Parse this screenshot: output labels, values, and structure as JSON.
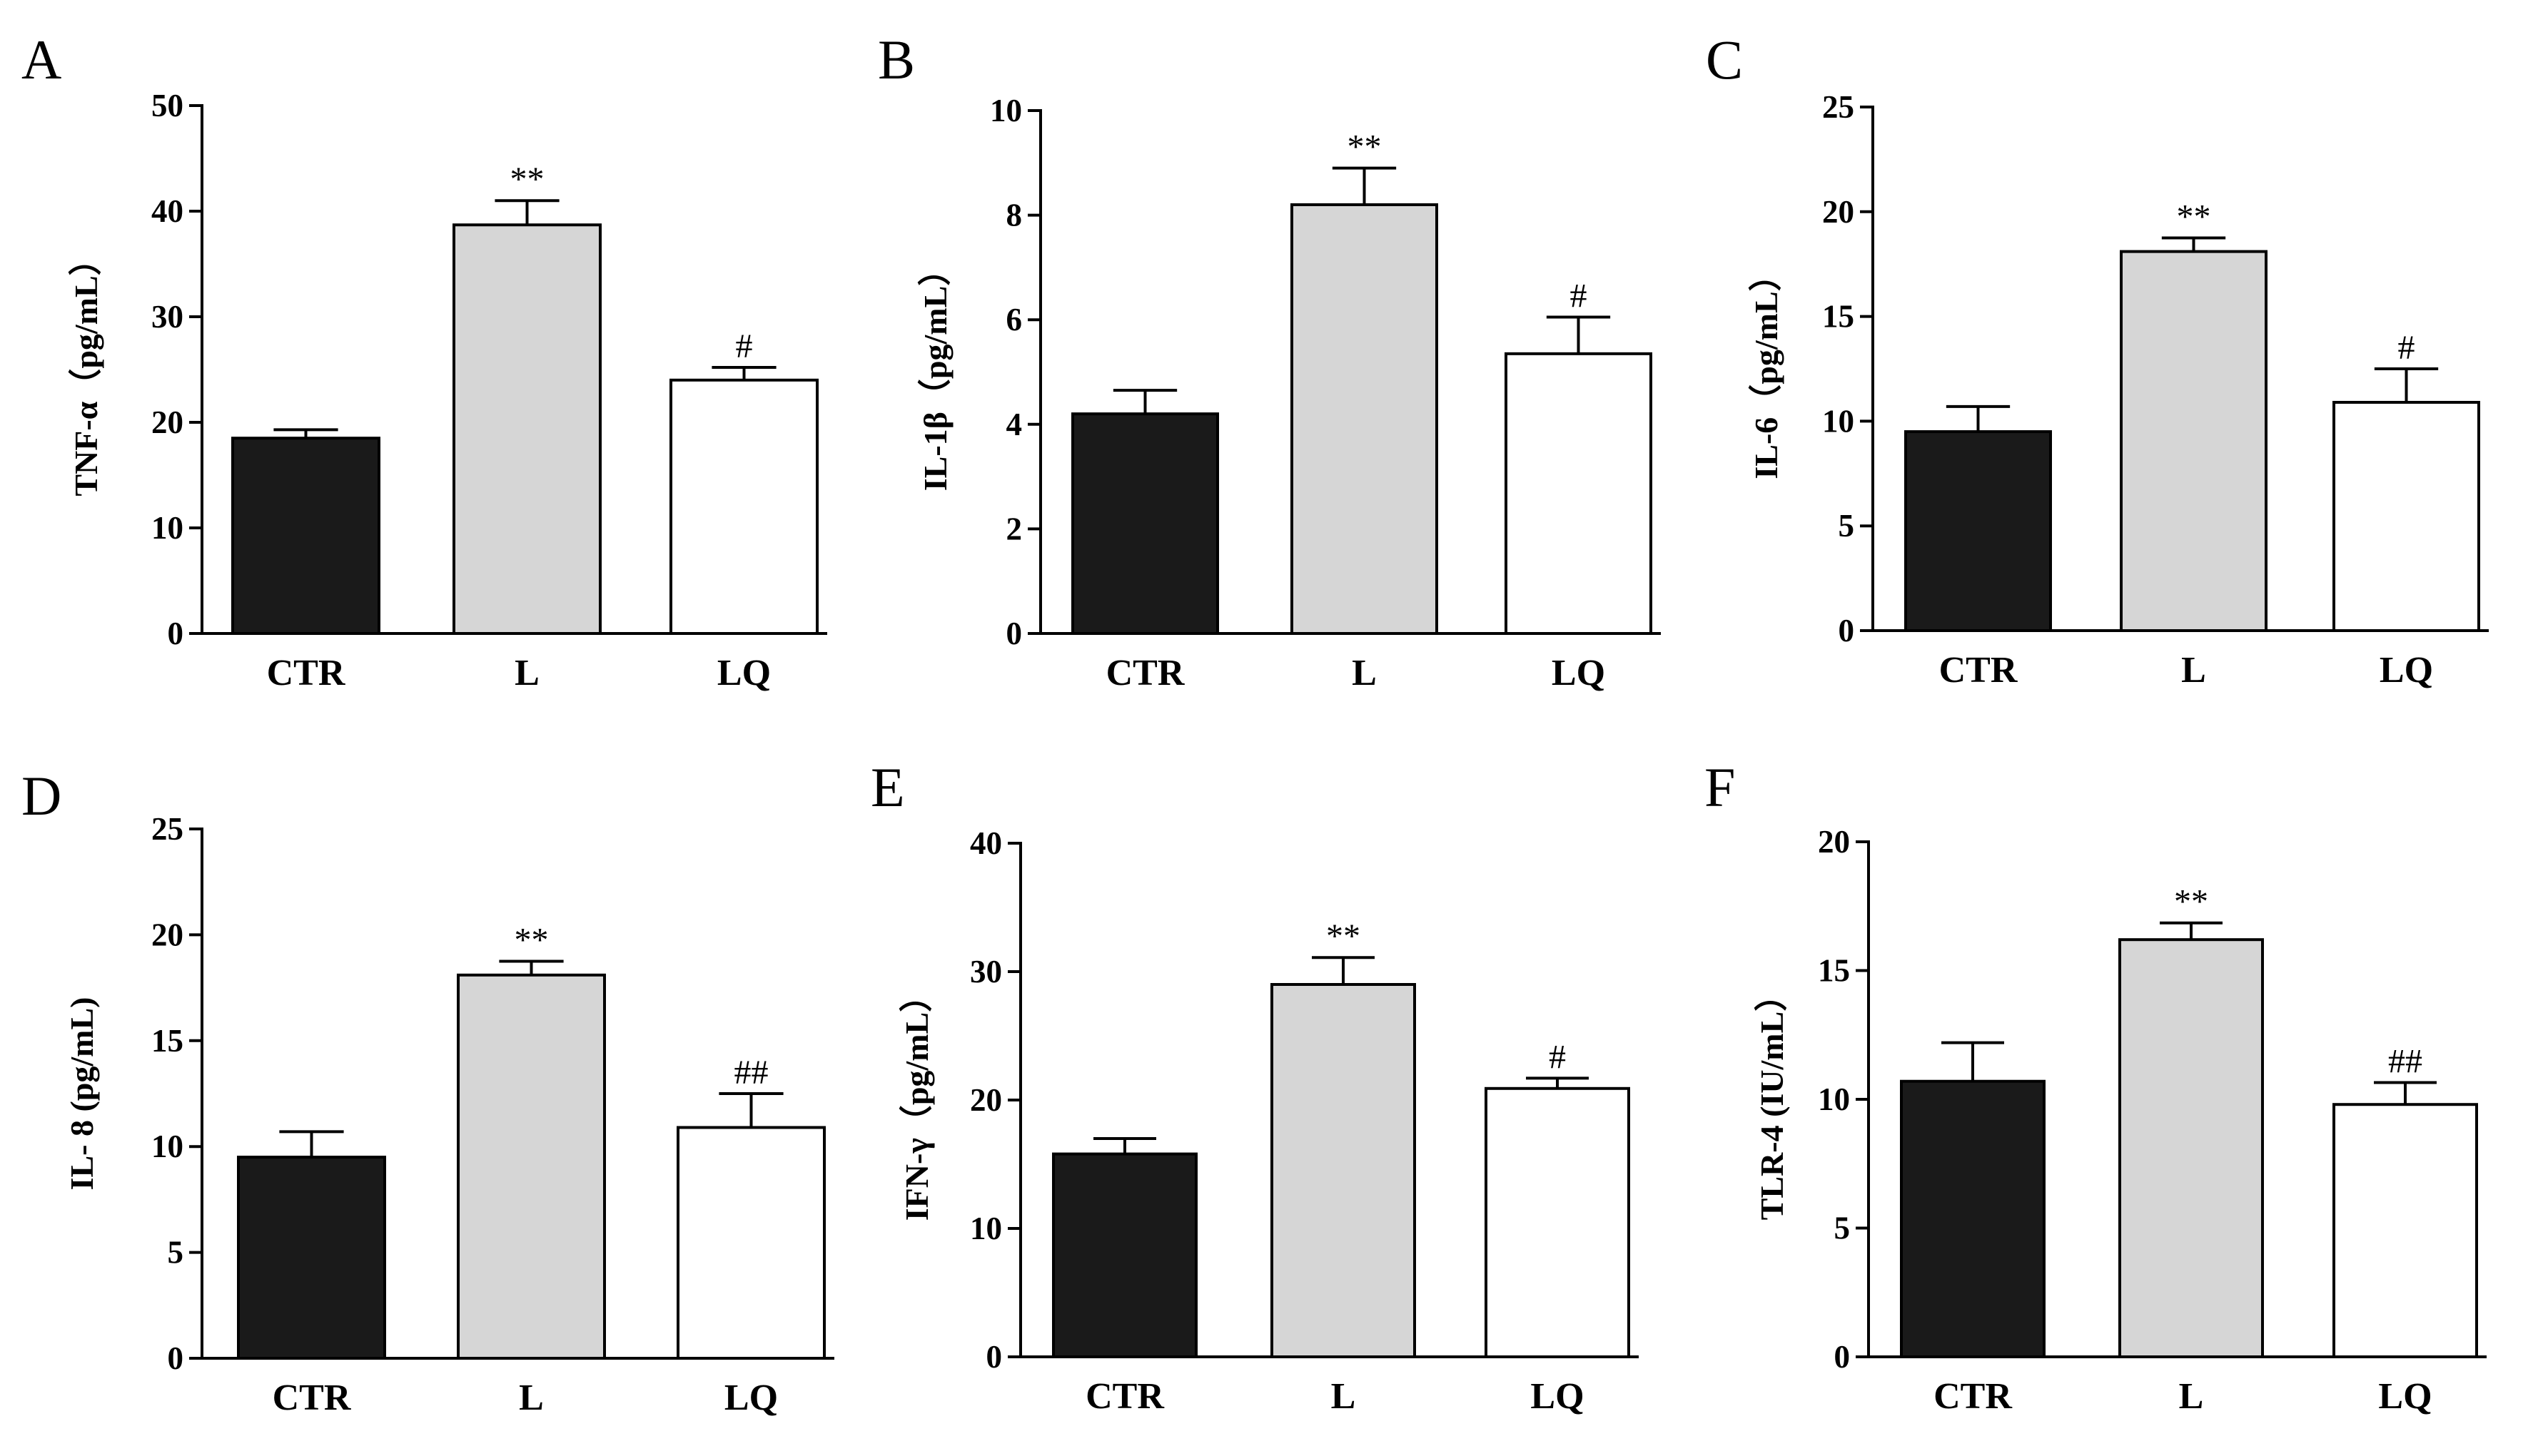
{
  "chart_data": [
    {
      "panel": "A",
      "type": "bar",
      "ylabel": "TNF-α（pg/mL）",
      "categories": [
        "CTR",
        "L",
        "LQ"
      ],
      "values": [
        18.5,
        38.7,
        24.0
      ],
      "errors": [
        0.8,
        2.3,
        1.2
      ],
      "significance": [
        "",
        "**",
        "#"
      ],
      "ylim": [
        0,
        50
      ],
      "yticks": [
        0,
        10,
        20,
        30,
        40,
        50
      ],
      "colors": [
        "#1a1a1a",
        "#d6d6d6",
        "#ffffff"
      ]
    },
    {
      "panel": "B",
      "type": "bar",
      "ylabel": "IL-1β（pg/mL）",
      "categories": [
        "CTR",
        "L",
        "LQ"
      ],
      "values": [
        4.2,
        8.2,
        5.35
      ],
      "errors": [
        0.45,
        0.7,
        0.7
      ],
      "significance": [
        "",
        "**",
        "#"
      ],
      "ylim": [
        0,
        10
      ],
      "yticks": [
        0,
        2,
        4,
        6,
        8,
        10
      ],
      "colors": [
        "#1a1a1a",
        "#d6d6d6",
        "#ffffff"
      ]
    },
    {
      "panel": "C",
      "type": "bar",
      "ylabel": "IL-6（pg/mL）",
      "categories": [
        "CTR",
        "L",
        "LQ"
      ],
      "values": [
        9.5,
        18.1,
        10.9
      ],
      "errors": [
        1.2,
        0.65,
        1.6
      ],
      "significance": [
        "",
        "**",
        "#"
      ],
      "ylim": [
        0,
        25
      ],
      "yticks": [
        0,
        5,
        10,
        15,
        20,
        25
      ],
      "colors": [
        "#1a1a1a",
        "#d6d6d6",
        "#ffffff"
      ]
    },
    {
      "panel": "D",
      "type": "bar",
      "ylabel": "IL- 8 (pg/mL)",
      "categories": [
        "CTR",
        "L",
        "LQ"
      ],
      "values": [
        9.5,
        18.1,
        10.9
      ],
      "errors": [
        1.2,
        0.65,
        1.6
      ],
      "significance": [
        "",
        "**",
        "##"
      ],
      "ylim": [
        0,
        25
      ],
      "yticks": [
        0,
        5,
        10,
        15,
        20,
        25
      ],
      "colors": [
        "#1a1a1a",
        "#d6d6d6",
        "#ffffff"
      ]
    },
    {
      "panel": "E",
      "type": "bar",
      "ylabel": "IFN-γ（pg/mL）",
      "categories": [
        "CTR",
        "L",
        "LQ"
      ],
      "values": [
        15.8,
        29.0,
        20.9
      ],
      "errors": [
        1.2,
        2.1,
        0.8
      ],
      "significance": [
        "",
        "**",
        "#"
      ],
      "ylim": [
        0,
        40
      ],
      "yticks": [
        0,
        10,
        20,
        30,
        40
      ],
      "colors": [
        "#1a1a1a",
        "#d6d6d6",
        "#ffffff"
      ]
    },
    {
      "panel": "F",
      "type": "bar",
      "ylabel": "TLR-4 (IU/mL）",
      "categories": [
        "CTR",
        "L",
        "LQ"
      ],
      "values": [
        10.7,
        16.2,
        9.8
      ],
      "errors": [
        1.5,
        0.65,
        0.85
      ],
      "significance": [
        "",
        "**",
        "##"
      ],
      "ylim": [
        0,
        20
      ],
      "yticks": [
        0,
        5,
        10,
        15,
        20
      ],
      "colors": [
        "#1a1a1a",
        "#d6d6d6",
        "#ffffff"
      ]
    }
  ]
}
